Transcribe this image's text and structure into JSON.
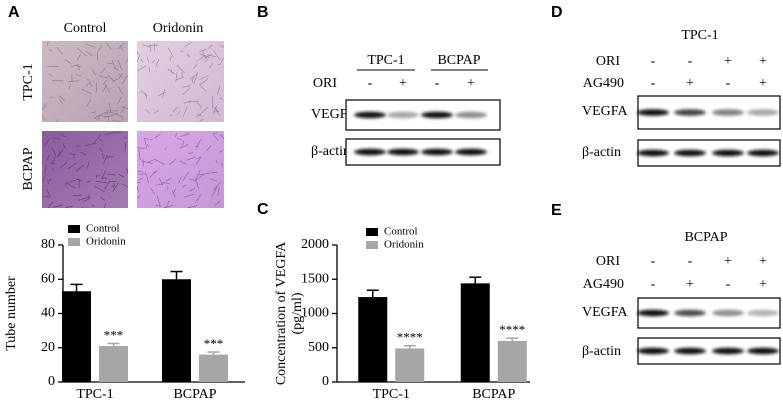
{
  "panel_labels": [
    "A",
    "B",
    "C",
    "D",
    "E"
  ],
  "panel_a": {
    "columns": [
      "Control",
      "Oridonin"
    ],
    "rows": [
      "TPC-1",
      "BCPAP"
    ]
  },
  "panel_b": {
    "groups": [
      "TPC-1",
      "BCPAP"
    ],
    "treatment": {
      "name": "ORI",
      "signs": [
        "-",
        "+",
        "-",
        "+"
      ]
    },
    "blots": [
      "VEGFA",
      "β-actin"
    ]
  },
  "panel_d": {
    "title": "TPC-1",
    "treatments": [
      {
        "name": "ORI",
        "signs": [
          "-",
          "-",
          "+",
          "+"
        ]
      },
      {
        "name": "AG490",
        "signs": [
          "-",
          "+",
          "-",
          "+"
        ]
      }
    ],
    "blots": [
      "VEGFA",
      "β-actin"
    ]
  },
  "panel_e": {
    "title": "BCPAP",
    "treatments": [
      {
        "name": "ORI",
        "signs": [
          "-",
          "-",
          "+",
          "+"
        ]
      },
      {
        "name": "AG490",
        "signs": [
          "-",
          "+",
          "-",
          "+"
        ]
      }
    ],
    "blots": [
      "VEGFA",
      "β-actin"
    ]
  },
  "chart_data": [
    {
      "type": "bar",
      "ylabel": "Tube number",
      "categories": [
        "TPC-1",
        "BCPAP"
      ],
      "series": [
        {
          "name": "Control",
          "color": "#000000",
          "values": [
            53,
            60
          ],
          "errors": [
            4,
            4.5
          ]
        },
        {
          "name": "Oridonin",
          "color": "#a6a6a6",
          "values": [
            21,
            16
          ],
          "errors": [
            1.5,
            1.5
          ],
          "annotations": [
            "***",
            "***"
          ]
        }
      ],
      "ylim": [
        0,
        80
      ],
      "yticks": [
        0,
        20,
        40,
        60,
        80
      ]
    },
    {
      "type": "bar",
      "ylabel": [
        "Concentration of VEGFA",
        "(pg/ml)"
      ],
      "categories": [
        "TPC-1",
        "BCPAP"
      ],
      "series": [
        {
          "name": "Control",
          "color": "#000000",
          "values": [
            1240,
            1440
          ],
          "errors": [
            100,
            90
          ]
        },
        {
          "name": "Oridonin",
          "color": "#a6a6a6",
          "values": [
            490,
            600
          ],
          "errors": [
            40,
            40
          ],
          "annotations": [
            "****",
            "****"
          ]
        }
      ],
      "ylim": [
        0,
        2000
      ],
      "yticks": [
        0,
        500,
        1000,
        1500,
        2000
      ]
    }
  ]
}
